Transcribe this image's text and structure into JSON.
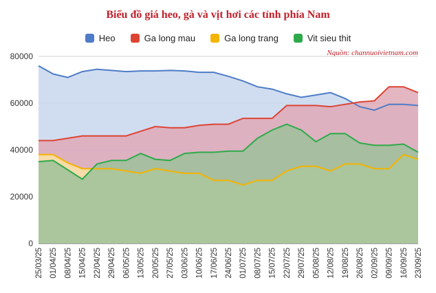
{
  "chart_data": {
    "type": "area",
    "title": "Biểu đồ giá heo, gà và vịt hơi các tỉnh phía Nam",
    "source": "Nguồn: channuoivietnam.com",
    "xlabel": "",
    "ylabel": "",
    "ylim": [
      0,
      80000
    ],
    "yticks": [
      "0",
      "20000",
      "40000",
      "60000",
      "80000"
    ],
    "grid": true,
    "legend_position": "top",
    "x": [
      "25/03/25",
      "01/04/25",
      "08/04/25",
      "15/04/25",
      "22/04/25",
      "29/04/25",
      "06/05/25",
      "13/05/25",
      "20/05/25",
      "27/05/25",
      "03/06/25",
      "10/06/25",
      "17/06/25",
      "24/06/25",
      "01/07/25",
      "08/07/25",
      "15/07/25",
      "22/07/25",
      "29/07/25",
      "05/08/25",
      "12/08/25",
      "19/08/25",
      "26/08/25",
      "02/09/25",
      "09/09/25",
      "16/09/25",
      "23/09/25"
    ],
    "series": [
      {
        "name": "Heo",
        "color": "#4e7cc6",
        "fill": "#c8d7ee",
        "values": [
          76000,
          72500,
          71000,
          73500,
          74500,
          74000,
          73500,
          73800,
          73800,
          74000,
          73800,
          73200,
          73200,
          71500,
          69500,
          67000,
          66000,
          64000,
          62500,
          63500,
          64500,
          62000,
          58500,
          57000,
          59500,
          59500,
          59000
        ]
      },
      {
        "name": "Ga long mau",
        "color": "#dd4433",
        "fill": "#dfa9b7",
        "values": [
          44000,
          44000,
          45000,
          46000,
          46000,
          46000,
          46000,
          48000,
          50000,
          49500,
          49500,
          50500,
          51000,
          51000,
          53500,
          53500,
          53500,
          59000,
          59000,
          59000,
          58500,
          59500,
          60500,
          61000,
          67000,
          67000,
          64500
        ]
      },
      {
        "name": "Ga long trang",
        "color": "#f4b400",
        "fill": "#fbe3a4",
        "values": [
          38000,
          38000,
          34500,
          32000,
          32000,
          32000,
          31000,
          30000,
          32000,
          31000,
          30000,
          30000,
          27000,
          27000,
          25000,
          27000,
          27000,
          31000,
          33000,
          33000,
          31000,
          34000,
          34000,
          32000,
          32000,
          38000,
          36000
        ]
      },
      {
        "name": "Vit sieu thit",
        "color": "#2eaa4a",
        "fill": "#9ec19a",
        "values": [
          35000,
          35500,
          31500,
          27500,
          34000,
          35500,
          35500,
          38500,
          36000,
          35500,
          38500,
          39000,
          39000,
          39500,
          39500,
          45000,
          48500,
          51000,
          48500,
          43500,
          47000,
          47000,
          43000,
          42000,
          42000,
          42500,
          39000
        ]
      }
    ]
  }
}
